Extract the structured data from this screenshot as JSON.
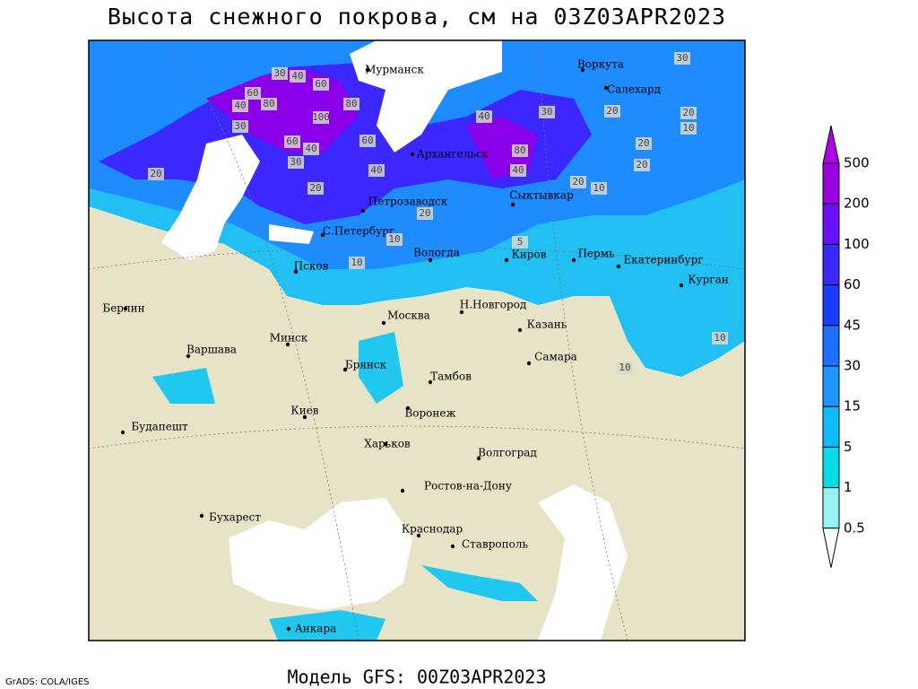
{
  "header": {
    "title": "Высота снежного покрова, см на 03Z03APR2023"
  },
  "footer": {
    "model": "Модель GFS: 00Z03APR2023",
    "credit": "GrADS: COLA/IGES"
  },
  "cities": [
    "Мурманск",
    "Воркута",
    "Салехард",
    "Архангельск",
    "Сыктывкар",
    "Петрозаводск",
    "С.Петербург",
    "Вологда",
    "Киров",
    "Пермь",
    "Екатеринбург",
    "Курган",
    "Псков",
    "Берлин",
    "Варшава",
    "Минск",
    "Москва",
    "Н.Новгород",
    "Казань",
    "Самара",
    "Брянск",
    "Тамбов",
    "Воронеж",
    "Киев",
    "Харьков",
    "Волгоград",
    "Будапешт",
    "Ростов-на-Дону",
    "Бухарест",
    "Краснодар",
    "Ставрополь",
    "Анкара"
  ],
  "contour_labels": [
    30,
    40,
    60,
    60,
    80,
    100,
    80,
    40,
    60,
    30,
    40,
    60,
    20,
    30,
    20,
    40,
    40,
    80,
    40,
    20,
    30,
    20,
    20,
    10,
    10,
    20,
    20,
    10,
    10,
    5,
    10,
    10,
    30,
    20
  ],
  "legend": {
    "levels": [
      500,
      200,
      100,
      60,
      45,
      30,
      15,
      5,
      1,
      0.5
    ],
    "colors": [
      "#b000e8",
      "#9a00e0",
      "#6a10ff",
      "#3a28ff",
      "#1a3cff",
      "#1e6eff",
      "#1e96ff",
      "#10bcf8",
      "#00dce8",
      "#98f2f4",
      "#ffffff"
    ]
  }
}
